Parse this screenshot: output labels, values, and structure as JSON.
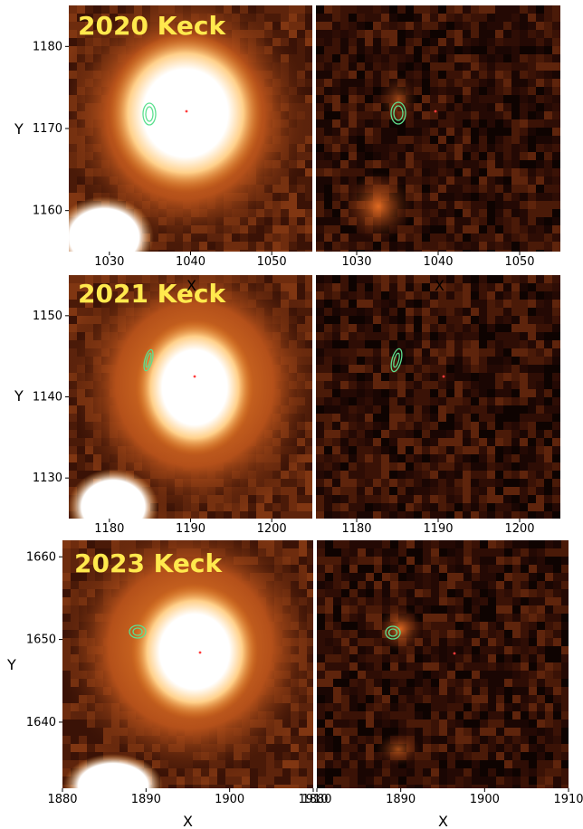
{
  "colors": {
    "title": "#ffe94d",
    "contour": "#5de08f",
    "marker": "#ff3b3b",
    "colormap": "orange-hot"
  },
  "rows": [
    {
      "title": "2020 Keck",
      "x_label": "X",
      "y_label": "Y",
      "x_ticks": [
        "1030",
        "1040",
        "1050"
      ],
      "y_ticks": [
        "1160",
        "1170",
        "1180"
      ],
      "x_range": [
        1025,
        1055
      ],
      "y_range": [
        1155,
        1185
      ]
    },
    {
      "title": "2021 Keck",
      "x_label": "X",
      "y_label": "Y",
      "x_ticks": [
        "1180",
        "1190",
        "1200"
      ],
      "y_ticks": [
        "1130",
        "1140",
        "1150"
      ],
      "x_range": [
        1175,
        1205
      ],
      "y_range": [
        1125,
        1155
      ]
    },
    {
      "title": "2023 Keck",
      "x_label": "X",
      "y_label": "Y",
      "x_ticks": [
        "1880",
        "1890",
        "1900",
        "1910"
      ],
      "y_ticks": [
        "1640",
        "1650",
        "1660"
      ],
      "x_range": [
        1880,
        1910
      ],
      "y_range": [
        1632,
        1662
      ]
    }
  ]
}
